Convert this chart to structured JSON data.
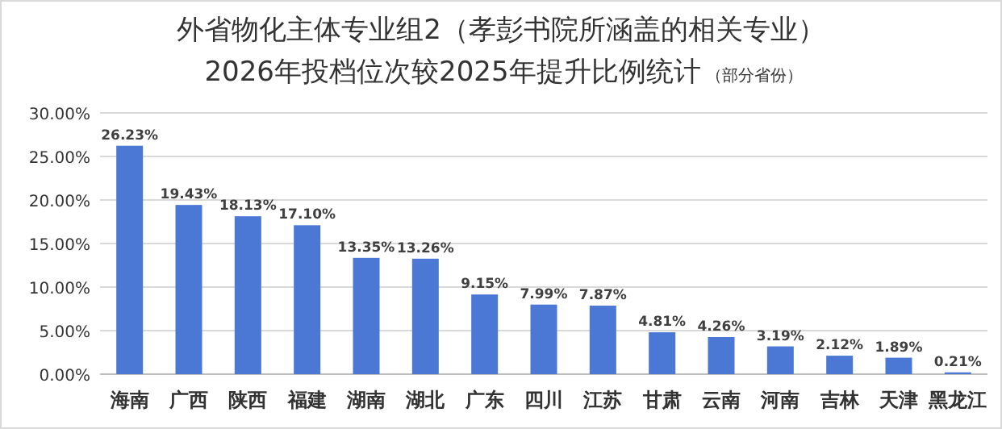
{
  "chart_data": {
    "type": "bar",
    "title": "外省物化主体专业组2（孝彭书院所涵盖的相关专业）",
    "subtitle": "2026年投档位次较2025年提升比例统计",
    "annotations": [
      "（部分省份）"
    ],
    "categories": [
      "海南",
      "广西",
      "陕西",
      "福建",
      "湖南",
      "湖北",
      "广东",
      "四川",
      "江苏",
      "甘肃",
      "云南",
      "河南",
      "吉林",
      "天津",
      "黑龙江"
    ],
    "values": [
      26.23,
      19.43,
      18.13,
      17.1,
      13.35,
      13.26,
      9.15,
      7.99,
      7.87,
      4.81,
      4.26,
      3.19,
      2.12,
      1.89,
      0.21
    ],
    "value_labels": [
      "26.23%",
      "19.43%",
      "18.13%",
      "17.10%",
      "13.35%",
      "13.26%",
      "9.15%",
      "7.99%",
      "7.87%",
      "4.81%",
      "4.26%",
      "3.19%",
      "2.12%",
      "1.89%",
      "0.21%"
    ],
    "color": "#4a78d4",
    "ylim": [
      0,
      30
    ],
    "yticks": [
      {
        "value": 0,
        "label": "0.00%"
      },
      {
        "value": 5,
        "label": "5.00%"
      },
      {
        "value": 10,
        "label": "10.00%"
      },
      {
        "value": 15,
        "label": "15.00%"
      },
      {
        "value": 20,
        "label": "20.00%"
      },
      {
        "value": 25,
        "label": "25.00%"
      },
      {
        "value": 30,
        "label": "30.00%"
      }
    ],
    "grid": "y"
  }
}
